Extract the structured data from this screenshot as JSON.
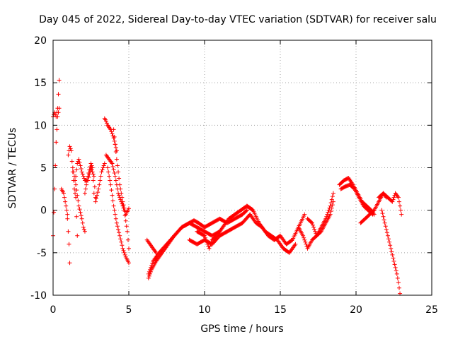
{
  "chart_data": {
    "type": "scatter",
    "title": "Day 045 of 2022, Sidereal Day-to-day VTEC variation (SDTVAR) for receiver salu",
    "xlabel": "GPS time / hours",
    "ylabel": "SDTVAR / TECUs",
    "xlim": [
      0,
      25
    ],
    "ylim": [
      -10,
      20
    ],
    "xticks": [
      0,
      5,
      10,
      15,
      20,
      25
    ],
    "yticks": [
      -10,
      -5,
      0,
      5,
      10,
      15,
      20
    ],
    "xtick_labels": [
      "0",
      "5",
      "10",
      "15",
      "20",
      "25"
    ],
    "ytick_labels": [
      "-10",
      "-5",
      "0",
      "5",
      "10",
      "15",
      "20"
    ],
    "grid": true,
    "marker": "+",
    "color": "#ff0000",
    "series": [
      {
        "name": "SDTVAR",
        "segments": [
          {
            "t": [
              0.0,
              0.1,
              0.2,
              0.3,
              0.4
            ],
            "v": [
              -3.0,
              2.5,
              8.0,
              11.0,
              12.0
            ]
          },
          {
            "t": [
              0.0,
              0.1,
              0.2,
              0.3,
              0.4
            ],
            "v": [
              11.0,
              11.5,
              11.0,
              12.0,
              15.3
            ]
          },
          {
            "t": [
              0.55,
              0.7,
              0.85,
              0.95
            ],
            "v": [
              2.5,
              2.0,
              0.5,
              -0.5
            ]
          },
          {
            "t": [
              0.95,
              1.0,
              1.05,
              1.1
            ],
            "v": [
              -1.0,
              -2.5,
              -4.0,
              -6.2
            ]
          },
          {
            "t": [
              1.0,
              1.1,
              1.2,
              1.3,
              1.4,
              1.5,
              1.6
            ],
            "v": [
              6.5,
              7.5,
              7.0,
              4.5,
              2.5,
              1.5,
              -3.0
            ]
          },
          {
            "t": [
              1.5,
              1.6,
              1.7,
              1.9,
              2.1,
              2.3,
              2.5,
              2.7,
              2.8
            ],
            "v": [
              4.0,
              5.5,
              6.0,
              4.5,
              3.5,
              3.5,
              5.0,
              4.0,
              1.5
            ]
          },
          {
            "t": [
              1.3,
              1.5,
              1.7,
              1.9,
              2.0,
              2.1
            ],
            "v": [
              5.0,
              3.0,
              0.5,
              -1.0,
              -2.0,
              -2.5
            ]
          },
          {
            "t": [
              2.1,
              2.3,
              2.5,
              2.6,
              2.7
            ],
            "v": [
              2.0,
              4.0,
              5.5,
              5.0,
              2.0
            ]
          },
          {
            "t": [
              2.8,
              3.0,
              3.2,
              3.4
            ],
            "v": [
              1.0,
              2.5,
              4.5,
              5.5
            ]
          },
          {
            "t": [
              3.4,
              3.5,
              3.6,
              3.8,
              4.0,
              4.2
            ],
            "v": [
              10.8,
              10.5,
              10.0,
              9.5,
              8.5,
              7.0
            ]
          },
          {
            "t": [
              3.5,
              3.7,
              3.9,
              4.1,
              4.3,
              4.5,
              4.7,
              4.9,
              5.0
            ],
            "v": [
              6.5,
              6.0,
              5.5,
              4.0,
              2.0,
              1.0,
              0.0,
              -2.5,
              -4.5
            ]
          },
          {
            "t": [
              3.6,
              3.8,
              4.0,
              4.2,
              4.4,
              4.6,
              4.8,
              5.0
            ],
            "v": [
              5.0,
              3.0,
              0.5,
              -1.5,
              -3.0,
              -4.5,
              -5.5,
              -6.2
            ]
          },
          {
            "t": [
              4.0,
              4.2,
              4.4,
              4.6,
              4.8,
              5.0
            ],
            "v": [
              9.5,
              6.0,
              3.0,
              1.0,
              -0.5,
              0.2
            ]
          },
          {
            "t": [
              6.2,
              6.4,
              6.6,
              6.8
            ],
            "v": [
              -3.5,
              -4.0,
              -4.5,
              -5.0
            ]
          },
          {
            "t": [
              6.3,
              6.5,
              6.8,
              7.2,
              7.6,
              8.0,
              8.5,
              9.0,
              9.5,
              10.0,
              10.5,
              11.0
            ],
            "v": [
              -8.0,
              -7.0,
              -6.0,
              -5.0,
              -4.0,
              -3.0,
              -2.0,
              -1.5,
              -2.0,
              -2.5,
              -3.0,
              -2.5
            ]
          },
          {
            "t": [
              6.3,
              6.6,
              7.0,
              7.5,
              8.0,
              8.5,
              9.0,
              9.3,
              9.6,
              10.0,
              10.5,
              11.0,
              11.5,
              12.0,
              12.5,
              12.8
            ],
            "v": [
              -7.5,
              -6.0,
              -5.0,
              -4.0,
              -3.0,
              -2.0,
              -1.5,
              -1.2,
              -1.5,
              -2.0,
              -1.5,
              -1.0,
              -1.5,
              -1.0,
              -0.5,
              0.0
            ]
          },
          {
            "t": [
              9.0,
              9.5,
              10.0,
              10.5,
              11.0,
              11.5,
              12.0,
              12.5,
              13.0
            ],
            "v": [
              -3.5,
              -4.0,
              -3.5,
              -4.0,
              -3.0,
              -2.5,
              -2.0,
              -1.5,
              -0.5
            ]
          },
          {
            "t": [
              9.5,
              10.0,
              10.3,
              10.5,
              10.8,
              11.2,
              11.6,
              12.0,
              12.4,
              12.8,
              13.2
            ],
            "v": [
              -2.5,
              -3.0,
              -4.5,
              -3.5,
              -3.0,
              -2.0,
              -1.0,
              -0.5,
              0.0,
              0.5,
              0.0
            ]
          },
          {
            "t": [
              12.8,
              13.2,
              13.6,
              14.0,
              14.4,
              14.8,
              15.2,
              15.6,
              16.0
            ],
            "v": [
              0.5,
              0.0,
              -1.5,
              -2.5,
              -3.0,
              -3.5,
              -4.5,
              -5.0,
              -4.0
            ]
          },
          {
            "t": [
              13.0,
              13.4,
              13.8,
              14.2,
              14.6,
              15.0,
              15.4,
              15.8,
              16.2,
              16.6
            ],
            "v": [
              -0.5,
              -1.5,
              -2.0,
              -3.0,
              -3.5,
              -3.0,
              -4.0,
              -3.5,
              -2.0,
              -0.5
            ]
          },
          {
            "t": [
              16.2,
              16.5,
              16.8,
              17.1,
              17.4,
              17.7,
              18.0,
              18.3,
              18.5
            ],
            "v": [
              -2.0,
              -3.0,
              -4.5,
              -3.5,
              -3.0,
              -2.0,
              -1.0,
              0.5,
              2.0
            ]
          },
          {
            "t": [
              16.8,
              17.1,
              17.4,
              17.7,
              18.0,
              18.3,
              18.5
            ],
            "v": [
              -1.0,
              -1.5,
              -3.0,
              -2.5,
              -1.5,
              -0.5,
              1.0
            ]
          },
          {
            "t": [
              18.9,
              19.2,
              19.5,
              19.8,
              20.1,
              20.4,
              20.7,
              21.0,
              21.2
            ],
            "v": [
              3.0,
              3.5,
              3.8,
              3.0,
              2.0,
              1.0,
              0.5,
              0.0,
              -0.5
            ]
          },
          {
            "t": [
              19.0,
              19.3,
              19.6,
              19.9,
              20.2,
              20.5,
              20.8,
              21.1
            ],
            "v": [
              2.5,
              2.8,
              3.0,
              2.5,
              1.5,
              0.5,
              0.0,
              -0.5
            ]
          },
          {
            "t": [
              20.3,
              20.6,
              20.9,
              21.2,
              21.5,
              21.8,
              22.0
            ],
            "v": [
              -1.5,
              -1.0,
              -0.5,
              0.0,
              1.0,
              2.0,
              1.5
            ]
          },
          {
            "t": [
              21.5,
              21.8,
              22.1,
              22.4,
              22.6,
              22.8,
              23.0
            ],
            "v": [
              1.5,
              2.0,
              1.5,
              1.0,
              2.0,
              1.5,
              -0.5
            ]
          },
          {
            "t": [
              21.7,
              21.9,
              22.1,
              22.3,
              22.5,
              22.7,
              22.8,
              22.9
            ],
            "v": [
              0.0,
              -1.5,
              -3.0,
              -4.5,
              -6.0,
              -7.5,
              -8.5,
              -9.8
            ]
          }
        ]
      }
    ]
  }
}
